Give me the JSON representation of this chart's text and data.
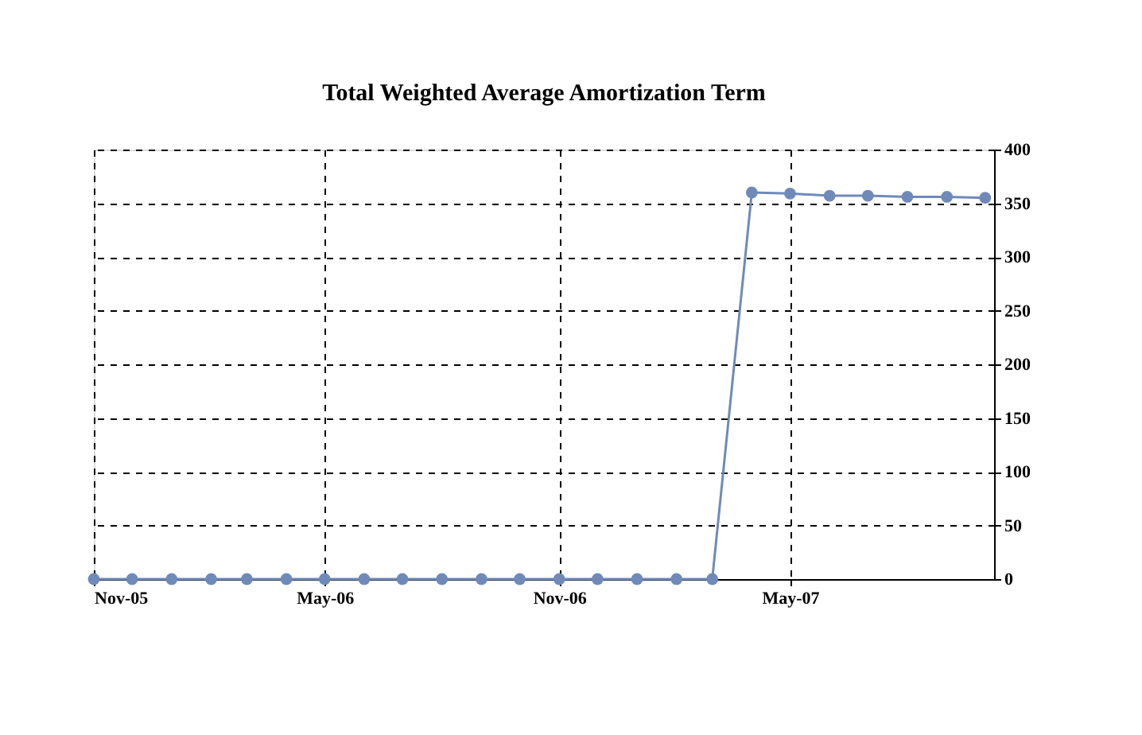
{
  "chart_data": {
    "type": "line",
    "title": "Total Weighted Average Amortization Term",
    "x": [
      "2005-11",
      "2005-12",
      "2006-01",
      "2006-02",
      "2006-03",
      "2006-04",
      "2006-05",
      "2006-06",
      "2006-07",
      "2006-08",
      "2006-09",
      "2006-10",
      "2006-11",
      "2006-12",
      "2007-01",
      "2007-02",
      "2007-03",
      "2007-04",
      "2007-05",
      "2007-06",
      "2007-07",
      "2007-08",
      "2007-09",
      "2007-10"
    ],
    "series": [
      {
        "color": "#6f8ab9",
        "values": [
          0,
          0,
          0,
          0,
          0,
          0,
          0,
          0,
          0,
          0,
          0,
          0,
          0,
          0,
          0,
          0,
          0,
          360,
          359,
          357,
          357,
          356,
          356,
          355
        ]
      }
    ],
    "xlim": [
      "2005-11-01",
      "2007-10-08"
    ],
    "xticks": [
      {
        "value": "2005-11",
        "label": "Nov-05"
      },
      {
        "value": "2006-05",
        "label": "May-06"
      },
      {
        "value": "2006-11",
        "label": "Nov-06"
      },
      {
        "value": "2007-05",
        "label": "May-07"
      }
    ],
    "ylim": [
      0,
      400
    ],
    "yticks": [
      0,
      50,
      100,
      150,
      200,
      250,
      300,
      350,
      400
    ],
    "grid": true,
    "marker": "circle",
    "line_style": "solid"
  }
}
